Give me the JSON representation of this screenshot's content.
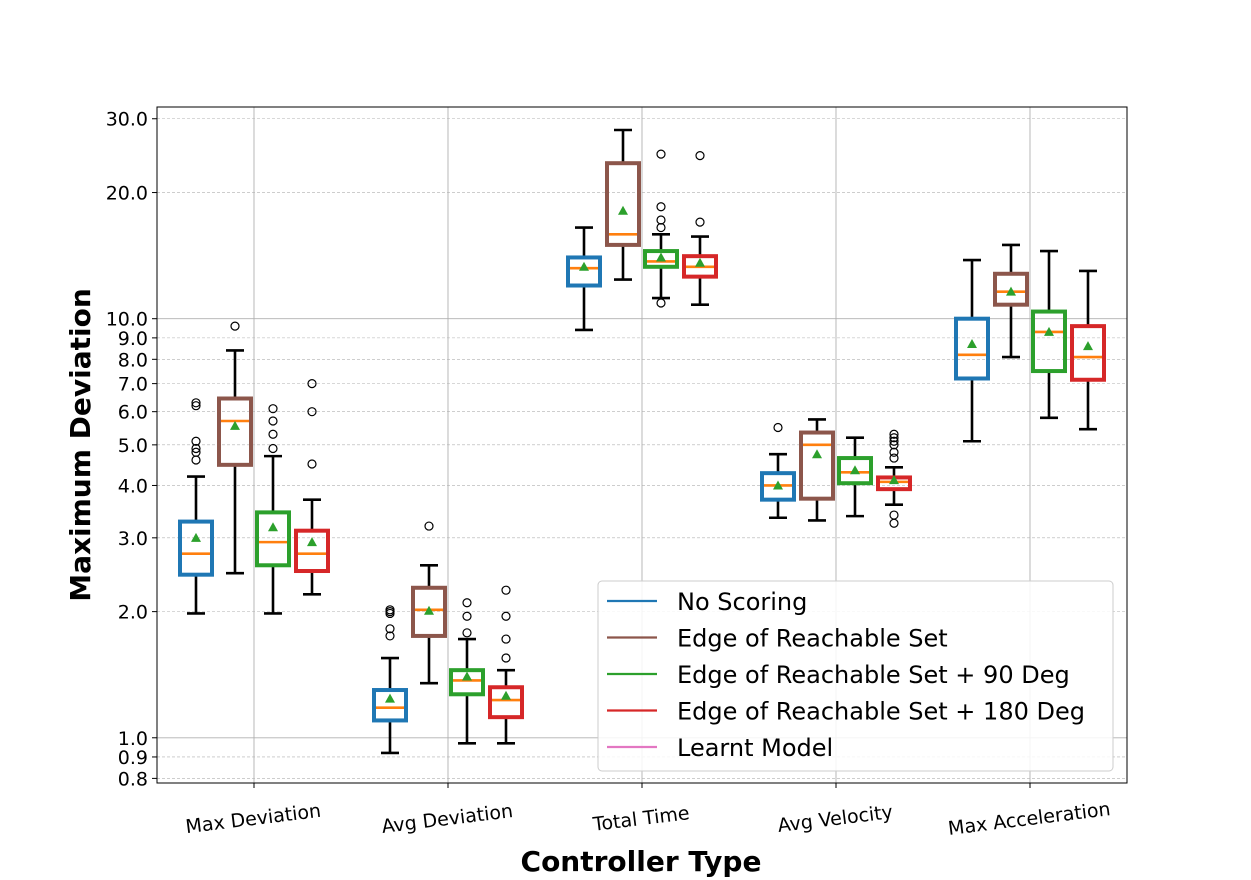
{
  "chart_data": {
    "type": "box",
    "xlabel": "Controller Type",
    "ylabel": "Maximum Deviation",
    "yscale": "log",
    "ylim": [
      0.78,
      32
    ],
    "y_ticks": [
      0.8,
      0.9,
      1.0,
      2.0,
      3.0,
      4.0,
      5.0,
      6.0,
      7.0,
      8.0,
      9.0,
      10.0,
      20.0,
      30.0
    ],
    "y_tick_labels": [
      "0.8",
      "0.9",
      "1.0",
      "2.0",
      "3.0",
      "4.0",
      "5.0",
      "6.0",
      "7.0",
      "8.0",
      "9.0",
      "10.0",
      "20.0",
      "30.0"
    ],
    "categories": [
      "Max Deviation",
      "Avg Deviation",
      "Total Time",
      "Avg Velocity",
      "Max Acceleration"
    ],
    "grid": true,
    "legend_position": "lower-right",
    "series": [
      {
        "name": "No Scoring",
        "color": "#1f77b4",
        "boxes": [
          {
            "whislo": 1.98,
            "q1": 2.45,
            "med": 2.75,
            "q3": 3.28,
            "whishi": 4.2,
            "mean": 3.0,
            "fliers": [
              4.6,
              4.8,
              4.9,
              5.1,
              6.2,
              6.3
            ]
          },
          {
            "whislo": 0.92,
            "q1": 1.1,
            "med": 1.18,
            "q3": 1.3,
            "whishi": 1.55,
            "mean": 1.24,
            "fliers": [
              1.75,
              1.82,
              1.98,
              2.0,
              2.02
            ]
          },
          {
            "whislo": 9.4,
            "q1": 12.0,
            "med": 13.2,
            "q3": 14.0,
            "whishi": 16.5,
            "mean": 13.3,
            "fliers": []
          },
          {
            "whislo": 3.35,
            "q1": 3.7,
            "med": 4.0,
            "q3": 4.28,
            "whishi": 4.75,
            "mean": 4.0,
            "fliers": [
              5.5
            ]
          },
          {
            "whislo": 5.1,
            "q1": 7.2,
            "med": 8.2,
            "q3": 10.0,
            "whishi": 13.8,
            "mean": 8.7,
            "fliers": []
          }
        ]
      },
      {
        "name": "Edge of Reachable Set",
        "color": "#8c564b",
        "boxes": [
          {
            "whislo": 2.47,
            "q1": 4.48,
            "med": 5.7,
            "q3": 6.45,
            "whishi": 8.4,
            "mean": 5.55,
            "fliers": [
              9.6
            ]
          },
          {
            "whislo": 1.35,
            "q1": 1.75,
            "med": 2.02,
            "q3": 2.28,
            "whishi": 2.58,
            "mean": 2.01,
            "fliers": [
              3.2
            ]
          },
          {
            "whislo": 12.4,
            "q1": 15.0,
            "med": 15.9,
            "q3": 23.5,
            "whishi": 28.2,
            "mean": 18.1,
            "fliers": []
          },
          {
            "whislo": 3.3,
            "q1": 3.72,
            "med": 5.0,
            "q3": 5.35,
            "whishi": 5.75,
            "mean": 4.75,
            "fliers": []
          },
          {
            "whislo": 8.1,
            "q1": 10.8,
            "med": 11.6,
            "q3": 12.8,
            "whishi": 15.0,
            "mean": 11.6,
            "fliers": []
          }
        ]
      },
      {
        "name": "Edge of Reachable Set + 90 Deg",
        "color": "#2ca02c",
        "boxes": [
          {
            "whislo": 1.98,
            "q1": 2.58,
            "med": 2.93,
            "q3": 3.45,
            "whishi": 4.7,
            "mean": 3.18,
            "fliers": [
              4.9,
              5.3,
              5.7,
              6.1
            ]
          },
          {
            "whislo": 0.97,
            "q1": 1.27,
            "med": 1.37,
            "q3": 1.45,
            "whishi": 1.72,
            "mean": 1.4,
            "fliers": [
              1.78,
              1.95,
              2.1
            ]
          },
          {
            "whislo": 11.2,
            "q1": 13.3,
            "med": 13.7,
            "q3": 14.5,
            "whishi": 15.9,
            "mean": 14.0,
            "fliers": [
              10.9,
              16.5,
              17.2,
              18.5,
              24.7
            ]
          },
          {
            "whislo": 3.38,
            "q1": 4.05,
            "med": 4.3,
            "q3": 4.65,
            "whishi": 5.2,
            "mean": 4.35,
            "fliers": []
          },
          {
            "whislo": 5.8,
            "q1": 7.5,
            "med": 9.3,
            "q3": 10.4,
            "whishi": 14.5,
            "mean": 9.3,
            "fliers": []
          }
        ]
      },
      {
        "name": "Edge of Reachable Set + 180 Deg",
        "color": "#d62728",
        "boxes": [
          {
            "whislo": 2.2,
            "q1": 2.5,
            "med": 2.75,
            "q3": 3.12,
            "whishi": 3.7,
            "mean": 2.93,
            "fliers": [
              4.5,
              6.0,
              7.0
            ]
          },
          {
            "whislo": 0.97,
            "q1": 1.12,
            "med": 1.23,
            "q3": 1.32,
            "whishi": 1.45,
            "mean": 1.26,
            "fliers": [
              1.55,
              1.72,
              1.95,
              2.25
            ]
          },
          {
            "whislo": 10.8,
            "q1": 12.6,
            "med": 13.3,
            "q3": 14.1,
            "whishi": 15.7,
            "mean": 13.6,
            "fliers": [
              17.0,
              24.5
            ]
          },
          {
            "whislo": 3.6,
            "q1": 3.92,
            "med": 4.08,
            "q3": 4.18,
            "whishi": 4.42,
            "mean": 4.12,
            "fliers": [
              3.25,
              3.4,
              4.65,
              4.8,
              5.0,
              5.1,
              5.2,
              5.3
            ]
          },
          {
            "whislo": 5.45,
            "q1": 7.15,
            "med": 8.1,
            "q3": 9.6,
            "whishi": 13.0,
            "mean": 8.6,
            "fliers": []
          }
        ]
      },
      {
        "name": "Learnt Model",
        "color": "#e377c2",
        "boxes": []
      }
    ],
    "median_color": "#ff7f0e",
    "mean_marker_color": "#2ca02c"
  }
}
